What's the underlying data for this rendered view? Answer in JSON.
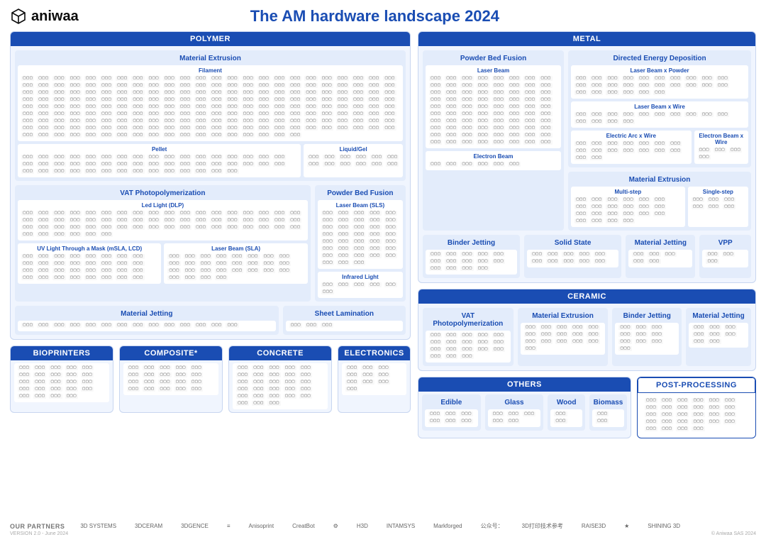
{
  "brand": "aniwaa",
  "title": "The AM hardware landscape 2024",
  "version": "VERSION 2.0 - June 2024",
  "copyright": "© Aniwaa SAS 2024",
  "colors": {
    "accent": "#1a4db3",
    "panel_bg": "#f0f5fe",
    "proc_bg": "#e3ecfb",
    "sub_bg": "#ffffff",
    "border": "#c8d6f0",
    "text": "#0a0a0a"
  },
  "partners": {
    "label": "OUR PARTNERS",
    "items": [
      "3D SYSTEMS",
      "3DCERAM",
      "3DGENCE",
      "≡",
      "Anisoprint",
      "CreatBot",
      "⚙",
      "H3D",
      "INTAMSYS",
      "Markforged",
      "公众号：",
      "3D打印技术参考",
      "RAISE3D",
      "★",
      "SHINING 3D"
    ]
  },
  "left": {
    "polymer": {
      "title": "POLYMER",
      "mat_extrusion": {
        "title": "Material Extrusion",
        "filament": {
          "title": "Filament",
          "count": 210
        },
        "pellet": {
          "title": "Pellet",
          "count": 48
        },
        "liquid": {
          "title": "Liquid/Gel",
          "count": 12
        }
      },
      "vat": {
        "title": "VAT Photopolymerization",
        "dlp": {
          "title": "Led Light (DLP)",
          "count": 60
        },
        "msla": {
          "title": "UV Light Through a Mask (mSLA, LCD)",
          "count": 32
        },
        "sla": {
          "title": "Laser Beam (SLA)",
          "count": 28
        }
      },
      "pbf": {
        "title": "Powder Bed Fusion",
        "sls": {
          "title": "Laser Beam (SLS)",
          "count": 38
        },
        "ir": {
          "title": "Infrared Light",
          "count": 6
        }
      },
      "mjet": {
        "title": "Material Jetting",
        "count": 14
      },
      "sheet": {
        "title": "Sheet Lamination",
        "count": 3
      }
    },
    "strip": {
      "bio": {
        "title": "BIOPRINTERS",
        "count": 24
      },
      "comp": {
        "title": "COMPOSITE*",
        "count": 20
      },
      "conc": {
        "title": "CONCRETE",
        "count": 28
      },
      "elec": {
        "title": "ELECTRONICS",
        "count": 10
      }
    }
  },
  "right": {
    "metal": {
      "title": "METAL",
      "pbf": {
        "title": "Powder Bed Fusion",
        "laser": {
          "title": "Laser Beam",
          "count": 80
        },
        "ebeam": {
          "title": "Electron Beam",
          "count": 6
        }
      },
      "ded": {
        "title": "Directed Energy Deposition",
        "lbp": {
          "title": "Laser Beam x Powder",
          "count": 26
        },
        "lbw": {
          "title": "Laser Beam x Wire",
          "count": 14
        },
        "eaw": {
          "title": "Electric Arc x Wire",
          "count": 16
        },
        "ebw": {
          "title": "Electron Beam x Wire",
          "count": 4
        }
      },
      "mex": {
        "title": "Material Extrusion",
        "multi": {
          "title": "Multi-step",
          "count": 22
        },
        "single": {
          "title": "Single-step",
          "count": 6
        }
      },
      "bj": {
        "title": "Binder Jetting",
        "count": 14
      },
      "ss": {
        "title": "Solid State",
        "count": 10
      },
      "mjet": {
        "title": "Material Jetting",
        "count": 5
      },
      "vpp": {
        "title": "VPP",
        "count": 3
      }
    },
    "ceramic": {
      "title": "CERAMIC",
      "vat": {
        "title": "VAT Photopolymerization",
        "count": 18
      },
      "mex": {
        "title": "Material Extrusion",
        "count": 16
      },
      "bj": {
        "title": "Binder Jetting",
        "count": 10
      },
      "mjet": {
        "title": "Material Jetting",
        "count": 8
      }
    },
    "others": {
      "title": "OTHERS",
      "edible": {
        "title": "Edible",
        "count": 6
      },
      "glass": {
        "title": "Glass",
        "count": 5
      },
      "wood": {
        "title": "Wood",
        "count": 2
      },
      "biomass": {
        "title": "Biomass",
        "count": 2
      }
    },
    "post": {
      "title": "POST-PROCESSING",
      "count": 28
    }
  }
}
